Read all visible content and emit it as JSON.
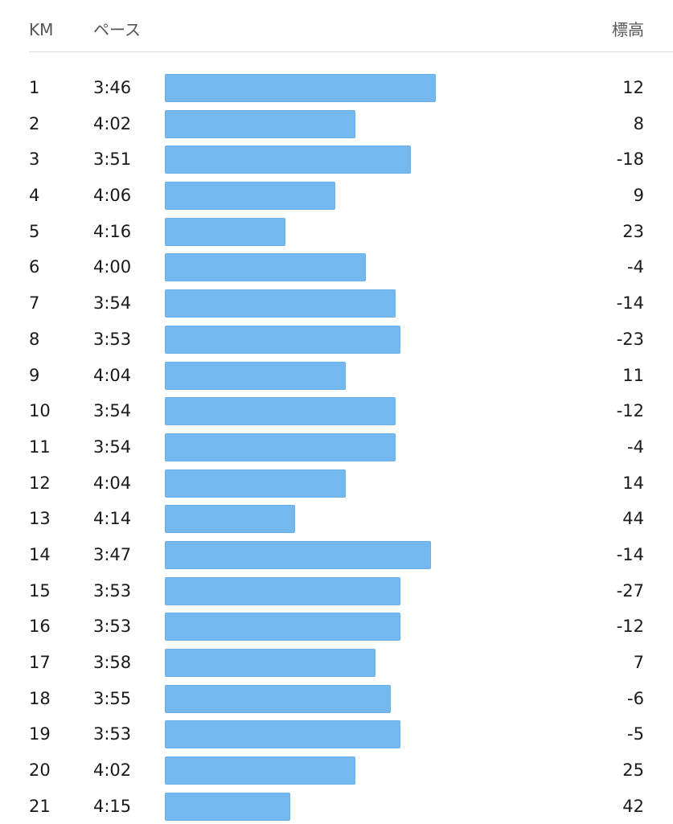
{
  "header": {
    "km_label": "KM",
    "pace_label": "ペース",
    "elevation_label": "標高"
  },
  "colors": {
    "bar": "#73b8ee"
  },
  "chart_data": {
    "type": "bar",
    "orientation": "horizontal",
    "pace_unit": "min:sec per km",
    "splits": [
      {
        "km": "1",
        "pace": "3:46",
        "pace_seconds": 226,
        "elevation": "12"
      },
      {
        "km": "2",
        "pace": "4:02",
        "pace_seconds": 242,
        "elevation": "8"
      },
      {
        "km": "3",
        "pace": "3:51",
        "pace_seconds": 231,
        "elevation": "-18"
      },
      {
        "km": "4",
        "pace": "4:06",
        "pace_seconds": 246,
        "elevation": "9"
      },
      {
        "km": "5",
        "pace": "4:16",
        "pace_seconds": 256,
        "elevation": "23"
      },
      {
        "km": "6",
        "pace": "4:00",
        "pace_seconds": 240,
        "elevation": "-4"
      },
      {
        "km": "7",
        "pace": "3:54",
        "pace_seconds": 234,
        "elevation": "-14"
      },
      {
        "km": "8",
        "pace": "3:53",
        "pace_seconds": 233,
        "elevation": "-23"
      },
      {
        "km": "9",
        "pace": "4:04",
        "pace_seconds": 244,
        "elevation": "11"
      },
      {
        "km": "10",
        "pace": "3:54",
        "pace_seconds": 234,
        "elevation": "-12"
      },
      {
        "km": "11",
        "pace": "3:54",
        "pace_seconds": 234,
        "elevation": "-4"
      },
      {
        "km": "12",
        "pace": "4:04",
        "pace_seconds": 244,
        "elevation": "14"
      },
      {
        "km": "13",
        "pace": "4:14",
        "pace_seconds": 254,
        "elevation": "44"
      },
      {
        "km": "14",
        "pace": "3:47",
        "pace_seconds": 227,
        "elevation": "-14"
      },
      {
        "km": "15",
        "pace": "3:53",
        "pace_seconds": 233,
        "elevation": "-27"
      },
      {
        "km": "16",
        "pace": "3:53",
        "pace_seconds": 233,
        "elevation": "-12"
      },
      {
        "km": "17",
        "pace": "3:58",
        "pace_seconds": 238,
        "elevation": "7"
      },
      {
        "km": "18",
        "pace": "3:55",
        "pace_seconds": 235,
        "elevation": "-6"
      },
      {
        "km": "19",
        "pace": "3:53",
        "pace_seconds": 233,
        "elevation": "-5"
      },
      {
        "km": "20",
        "pace": "4:02",
        "pace_seconds": 242,
        "elevation": "25"
      },
      {
        "km": "21",
        "pace": "4:15",
        "pace_seconds": 255,
        "elevation": "42"
      }
    ]
  }
}
